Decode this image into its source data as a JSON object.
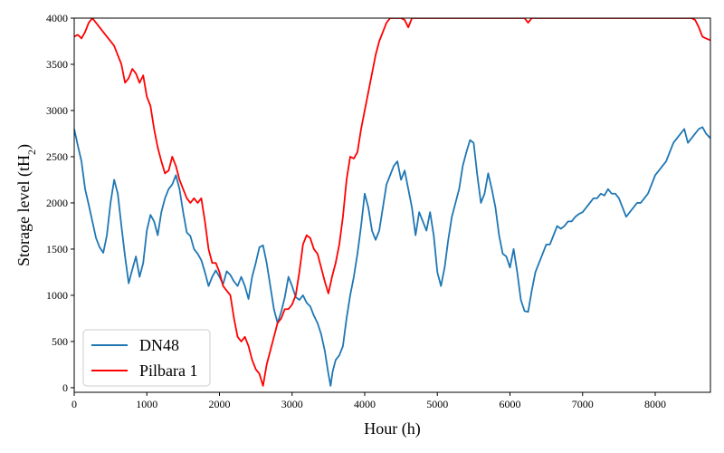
{
  "chart_data": {
    "type": "line",
    "title": "",
    "xlabel": "Hour (h)",
    "ylabel": "Storage level (tH",
    "ylabel_sub": "2",
    "ylabel_close": ")",
    "xlim": [
      0,
      8760
    ],
    "ylim": [
      -50,
      4000
    ],
    "xticks": [
      0,
      1000,
      2000,
      3000,
      4000,
      5000,
      6000,
      7000,
      8000
    ],
    "yticks": [
      0,
      500,
      1000,
      1500,
      2000,
      2500,
      3000,
      3500,
      4000
    ],
    "grid": false,
    "legend_position": "lower-left",
    "series": [
      {
        "name": "DN48",
        "color": "#1f77b4",
        "points": [
          [
            0,
            2800
          ],
          [
            50,
            2620
          ],
          [
            100,
            2450
          ],
          [
            150,
            2150
          ],
          [
            200,
            1980
          ],
          [
            250,
            1800
          ],
          [
            300,
            1620
          ],
          [
            350,
            1520
          ],
          [
            400,
            1460
          ],
          [
            450,
            1650
          ],
          [
            500,
            2000
          ],
          [
            550,
            2250
          ],
          [
            600,
            2100
          ],
          [
            650,
            1750
          ],
          [
            700,
            1420
          ],
          [
            750,
            1130
          ],
          [
            800,
            1280
          ],
          [
            850,
            1420
          ],
          [
            900,
            1200
          ],
          [
            950,
            1350
          ],
          [
            1000,
            1700
          ],
          [
            1050,
            1870
          ],
          [
            1100,
            1800
          ],
          [
            1150,
            1650
          ],
          [
            1200,
            1900
          ],
          [
            1250,
            2050
          ],
          [
            1300,
            2150
          ],
          [
            1350,
            2200
          ],
          [
            1400,
            2300
          ],
          [
            1450,
            2150
          ],
          [
            1500,
            1900
          ],
          [
            1550,
            1680
          ],
          [
            1600,
            1640
          ],
          [
            1650,
            1500
          ],
          [
            1700,
            1450
          ],
          [
            1750,
            1380
          ],
          [
            1800,
            1250
          ],
          [
            1850,
            1100
          ],
          [
            1900,
            1200
          ],
          [
            1950,
            1270
          ],
          [
            2000,
            1200
          ],
          [
            2050,
            1120
          ],
          [
            2100,
            1260
          ],
          [
            2150,
            1220
          ],
          [
            2200,
            1150
          ],
          [
            2250,
            1100
          ],
          [
            2300,
            1200
          ],
          [
            2350,
            1100
          ],
          [
            2400,
            960
          ],
          [
            2450,
            1200
          ],
          [
            2500,
            1350
          ],
          [
            2550,
            1520
          ],
          [
            2600,
            1540
          ],
          [
            2650,
            1350
          ],
          [
            2700,
            1100
          ],
          [
            2750,
            850
          ],
          [
            2800,
            700
          ],
          [
            2850,
            820
          ],
          [
            2900,
            980
          ],
          [
            2950,
            1200
          ],
          [
            3000,
            1100
          ],
          [
            3050,
            980
          ],
          [
            3100,
            950
          ],
          [
            3150,
            1000
          ],
          [
            3200,
            920
          ],
          [
            3250,
            880
          ],
          [
            3300,
            780
          ],
          [
            3350,
            700
          ],
          [
            3400,
            580
          ],
          [
            3450,
            400
          ],
          [
            3500,
            150
          ],
          [
            3530,
            20
          ],
          [
            3560,
            180
          ],
          [
            3600,
            300
          ],
          [
            3650,
            350
          ],
          [
            3700,
            450
          ],
          [
            3750,
            750
          ],
          [
            3800,
            1000
          ],
          [
            3850,
            1200
          ],
          [
            3900,
            1450
          ],
          [
            3950,
            1750
          ],
          [
            4000,
            2100
          ],
          [
            4050,
            1950
          ],
          [
            4100,
            1700
          ],
          [
            4150,
            1600
          ],
          [
            4200,
            1700
          ],
          [
            4250,
            1950
          ],
          [
            4300,
            2200
          ],
          [
            4350,
            2300
          ],
          [
            4400,
            2400
          ],
          [
            4450,
            2450
          ],
          [
            4500,
            2250
          ],
          [
            4550,
            2350
          ],
          [
            4600,
            2150
          ],
          [
            4650,
            1950
          ],
          [
            4700,
            1650
          ],
          [
            4750,
            1900
          ],
          [
            4800,
            1800
          ],
          [
            4850,
            1700
          ],
          [
            4900,
            1900
          ],
          [
            4950,
            1650
          ],
          [
            5000,
            1250
          ],
          [
            5050,
            1100
          ],
          [
            5100,
            1300
          ],
          [
            5150,
            1600
          ],
          [
            5200,
            1850
          ],
          [
            5250,
            2000
          ],
          [
            5300,
            2150
          ],
          [
            5350,
            2400
          ],
          [
            5400,
            2550
          ],
          [
            5450,
            2680
          ],
          [
            5500,
            2650
          ],
          [
            5550,
            2300
          ],
          [
            5600,
            2000
          ],
          [
            5650,
            2100
          ],
          [
            5700,
            2320
          ],
          [
            5750,
            2150
          ],
          [
            5800,
            1950
          ],
          [
            5850,
            1650
          ],
          [
            5900,
            1450
          ],
          [
            5950,
            1420
          ],
          [
            6000,
            1300
          ],
          [
            6050,
            1500
          ],
          [
            6100,
            1250
          ],
          [
            6150,
            950
          ],
          [
            6200,
            830
          ],
          [
            6250,
            820
          ],
          [
            6300,
            1050
          ],
          [
            6350,
            1250
          ],
          [
            6400,
            1350
          ],
          [
            6450,
            1450
          ],
          [
            6500,
            1550
          ],
          [
            6550,
            1550
          ],
          [
            6600,
            1650
          ],
          [
            6650,
            1750
          ],
          [
            6700,
            1720
          ],
          [
            6750,
            1750
          ],
          [
            6800,
            1800
          ],
          [
            6850,
            1800
          ],
          [
            6900,
            1850
          ],
          [
            6950,
            1880
          ],
          [
            7000,
            1900
          ],
          [
            7050,
            1950
          ],
          [
            7100,
            2000
          ],
          [
            7150,
            2050
          ],
          [
            7200,
            2050
          ],
          [
            7250,
            2100
          ],
          [
            7300,
            2080
          ],
          [
            7350,
            2150
          ],
          [
            7400,
            2100
          ],
          [
            7450,
            2100
          ],
          [
            7500,
            2050
          ],
          [
            7550,
            1950
          ],
          [
            7600,
            1850
          ],
          [
            7650,
            1900
          ],
          [
            7700,
            1950
          ],
          [
            7750,
            2000
          ],
          [
            7800,
            2000
          ],
          [
            7850,
            2050
          ],
          [
            7900,
            2100
          ],
          [
            7950,
            2200
          ],
          [
            8000,
            2300
          ],
          [
            8050,
            2350
          ],
          [
            8100,
            2400
          ],
          [
            8150,
            2450
          ],
          [
            8200,
            2550
          ],
          [
            8250,
            2650
          ],
          [
            8300,
            2700
          ],
          [
            8350,
            2750
          ],
          [
            8400,
            2800
          ],
          [
            8450,
            2650
          ],
          [
            8500,
            2700
          ],
          [
            8550,
            2750
          ],
          [
            8600,
            2800
          ],
          [
            8650,
            2820
          ],
          [
            8700,
            2750
          ],
          [
            8760,
            2700
          ]
        ]
      },
      {
        "name": "Pilbara 1",
        "color": "#ff0000",
        "points": [
          [
            0,
            3800
          ],
          [
            50,
            3820
          ],
          [
            100,
            3780
          ],
          [
            150,
            3850
          ],
          [
            200,
            3950
          ],
          [
            250,
            4000
          ],
          [
            300,
            3950
          ],
          [
            350,
            3900
          ],
          [
            400,
            3850
          ],
          [
            450,
            3800
          ],
          [
            500,
            3750
          ],
          [
            550,
            3700
          ],
          [
            600,
            3600
          ],
          [
            650,
            3500
          ],
          [
            700,
            3300
          ],
          [
            750,
            3350
          ],
          [
            800,
            3450
          ],
          [
            850,
            3400
          ],
          [
            900,
            3300
          ],
          [
            950,
            3380
          ],
          [
            1000,
            3150
          ],
          [
            1050,
            3050
          ],
          [
            1100,
            2800
          ],
          [
            1150,
            2600
          ],
          [
            1200,
            2450
          ],
          [
            1250,
            2320
          ],
          [
            1300,
            2350
          ],
          [
            1350,
            2500
          ],
          [
            1400,
            2400
          ],
          [
            1450,
            2250
          ],
          [
            1500,
            2150
          ],
          [
            1550,
            2050
          ],
          [
            1600,
            2000
          ],
          [
            1650,
            2050
          ],
          [
            1700,
            2000
          ],
          [
            1750,
            2050
          ],
          [
            1800,
            1800
          ],
          [
            1850,
            1500
          ],
          [
            1900,
            1350
          ],
          [
            1950,
            1350
          ],
          [
            2000,
            1250
          ],
          [
            2050,
            1100
          ],
          [
            2100,
            1050
          ],
          [
            2150,
            1000
          ],
          [
            2200,
            750
          ],
          [
            2250,
            550
          ],
          [
            2300,
            500
          ],
          [
            2350,
            550
          ],
          [
            2400,
            450
          ],
          [
            2450,
            300
          ],
          [
            2500,
            200
          ],
          [
            2550,
            150
          ],
          [
            2600,
            20
          ],
          [
            2650,
            250
          ],
          [
            2700,
            400
          ],
          [
            2750,
            550
          ],
          [
            2800,
            700
          ],
          [
            2850,
            750
          ],
          [
            2900,
            850
          ],
          [
            2950,
            850
          ],
          [
            3000,
            900
          ],
          [
            3050,
            1000
          ],
          [
            3100,
            1250
          ],
          [
            3150,
            1550
          ],
          [
            3200,
            1650
          ],
          [
            3250,
            1620
          ],
          [
            3300,
            1500
          ],
          [
            3350,
            1450
          ],
          [
            3400,
            1300
          ],
          [
            3450,
            1150
          ],
          [
            3500,
            1020
          ],
          [
            3550,
            1200
          ],
          [
            3600,
            1350
          ],
          [
            3650,
            1550
          ],
          [
            3700,
            1850
          ],
          [
            3750,
            2250
          ],
          [
            3800,
            2500
          ],
          [
            3850,
            2480
          ],
          [
            3900,
            2550
          ],
          [
            3950,
            2800
          ],
          [
            4000,
            3000
          ],
          [
            4050,
            3200
          ],
          [
            4100,
            3400
          ],
          [
            4150,
            3600
          ],
          [
            4200,
            3750
          ],
          [
            4250,
            3850
          ],
          [
            4300,
            3950
          ],
          [
            4350,
            4000
          ],
          [
            4400,
            4000
          ],
          [
            4450,
            4000
          ],
          [
            4500,
            4000
          ],
          [
            4550,
            3980
          ],
          [
            4600,
            3900
          ],
          [
            4650,
            4000
          ],
          [
            4700,
            4000
          ],
          [
            4800,
            4000
          ],
          [
            4900,
            4000
          ],
          [
            5000,
            4000
          ],
          [
            5500,
            4000
          ],
          [
            6000,
            4000
          ],
          [
            6200,
            4000
          ],
          [
            6250,
            3950
          ],
          [
            6300,
            4000
          ],
          [
            6500,
            4000
          ],
          [
            7000,
            4000
          ],
          [
            7500,
            4000
          ],
          [
            8000,
            4000
          ],
          [
            8500,
            4000
          ],
          [
            8550,
            3980
          ],
          [
            8600,
            3900
          ],
          [
            8650,
            3800
          ],
          [
            8700,
            3780
          ],
          [
            8760,
            3760
          ]
        ]
      }
    ]
  }
}
